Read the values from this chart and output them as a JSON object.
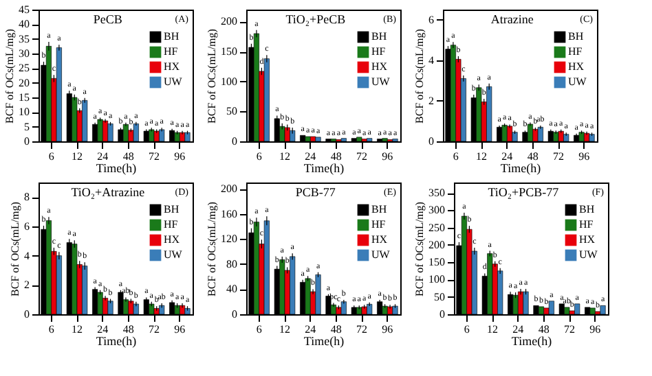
{
  "chart_data": [
    {
      "type": "bar",
      "title": "PeCB",
      "annotations": [
        "(A)"
      ],
      "xlabel": "Time(h)",
      "ylabel": "BCF of OCs(mL/mg)",
      "categories": [
        "6",
        "12",
        "24",
        "48",
        "72",
        "96"
      ],
      "ylim": [
        0,
        45
      ],
      "yticks": [
        0,
        5,
        10,
        15,
        20,
        25,
        30,
        35,
        40,
        45
      ],
      "legend": "top right",
      "grid": false,
      "series": [
        {
          "name": "BH",
          "color": "#000000",
          "values": [
            26,
            16.3,
            5.8,
            4,
            3.5,
            3.7
          ],
          "errors": [
            1.2,
            1,
            0.6,
            0.6,
            0.6,
            0.6
          ],
          "value_labels": [
            "b",
            "a",
            "a",
            "b",
            "a",
            "a"
          ]
        },
        {
          "name": "HF",
          "color": "#1a7a1a",
          "values": [
            32.5,
            15,
            7.5,
            5.8,
            4,
            3
          ],
          "errors": [
            1.5,
            1,
            0.6,
            0.6,
            0.6,
            0.6
          ],
          "value_labels": [
            "a",
            "a",
            "a",
            "a",
            "a",
            "a"
          ]
        },
        {
          "name": "HX",
          "color": "#e8000b",
          "values": [
            21.5,
            10.5,
            7,
            3.8,
            3.5,
            3
          ],
          "errors": [
            1.2,
            0.8,
            0.6,
            0.6,
            0.6,
            0.6
          ],
          "value_labels": [
            "c",
            "b",
            "a",
            "b",
            "a",
            "a"
          ]
        },
        {
          "name": "UW",
          "color": "#3a7db8",
          "values": [
            32,
            14,
            6,
            6,
            4,
            3
          ],
          "errors": [
            1,
            0.8,
            0.6,
            0.6,
            0.6,
            0.6
          ],
          "value_labels": [
            "a",
            "a",
            "a",
            "a",
            "a",
            "a"
          ]
        }
      ]
    },
    {
      "type": "bar",
      "title": "TiO₂+PeCB",
      "annotations": [
        "(B)"
      ],
      "xlabel": "Time(h)",
      "ylabel": "BCF of OCs(mL/mg)",
      "categories": [
        "6",
        "12",
        "24",
        "48",
        "72",
        "96"
      ],
      "ylim": [
        0,
        220
      ],
      "yticks": [
        0,
        50,
        100,
        150,
        200
      ],
      "legend": "top right",
      "grid": false,
      "series": [
        {
          "name": "BH",
          "color": "#000000",
          "values": [
            157,
            38,
            10,
            4,
            5,
            4
          ],
          "errors": [
            6,
            5,
            null,
            null,
            null,
            null
          ],
          "value_labels": [
            "b",
            "a",
            "a",
            "a",
            "a",
            "a"
          ]
        },
        {
          "name": "HF",
          "color": "#1a7a1a",
          "values": [
            180,
            25,
            8,
            4,
            7,
            5
          ],
          "errors": [
            6,
            5,
            null,
            null,
            null,
            null
          ],
          "value_labels": [
            "a",
            "b",
            "a",
            "a",
            "a",
            "a"
          ]
        },
        {
          "name": "HX",
          "color": "#e8000b",
          "values": [
            117,
            23,
            8,
            3,
            4,
            3
          ],
          "errors": [
            6,
            5,
            null,
            null,
            null,
            null
          ],
          "value_labels": [
            "d",
            "b",
            "a",
            "a",
            "a",
            "a"
          ]
        },
        {
          "name": "UW",
          "color": "#3a7db8",
          "values": [
            138,
            18,
            7,
            5,
            5,
            4
          ],
          "errors": [
            6,
            5,
            null,
            null,
            null,
            null
          ],
          "value_labels": [
            "c",
            "b",
            "a",
            "a",
            "a",
            "a"
          ]
        }
      ]
    },
    {
      "type": "bar",
      "title": "Atrazine",
      "annotations": [
        "(C)"
      ],
      "xlabel": "Time(h)",
      "ylabel": "BCF of OCs(mL/mg)",
      "categories": [
        "6",
        "12",
        "24",
        "48",
        "72",
        "96"
      ],
      "ylim": [
        0,
        6.5
      ],
      "yticks": [
        0,
        2,
        4,
        6
      ],
      "legend": "top right",
      "grid": false,
      "series": [
        {
          "name": "BH",
          "color": "#000000",
          "values": [
            4.55,
            2.15,
            0.7,
            0.45,
            0.5,
            0.3
          ],
          "errors": [
            0.15,
            0.15,
            0.08,
            0.08,
            0.08,
            0.08
          ],
          "value_labels": [
            "a",
            "b",
            "a",
            "b",
            "a",
            "a"
          ]
        },
        {
          "name": "HF",
          "color": "#1a7a1a",
          "values": [
            4.75,
            2.65,
            0.8,
            0.85,
            0.45,
            0.45
          ],
          "errors": [
            0.15,
            0.15,
            0.08,
            0.08,
            0.08,
            0.08
          ],
          "value_labels": [
            "a",
            "a",
            "a",
            "a",
            "a",
            "a"
          ]
        },
        {
          "name": "HX",
          "color": "#e8000b",
          "values": [
            4.05,
            1.95,
            0.75,
            0.6,
            0.5,
            0.4
          ],
          "errors": [
            0.15,
            0.15,
            0.08,
            0.08,
            0.08,
            0.08
          ],
          "value_labels": [
            "b",
            "b",
            "a",
            "b",
            "a",
            "a"
          ]
        },
        {
          "name": "UW",
          "color": "#3a7db8",
          "values": [
            3.1,
            2.7,
            0.45,
            0.7,
            0.35,
            0.35
          ],
          "errors": [
            0.15,
            0.15,
            0.08,
            0.08,
            0.08,
            0.08
          ],
          "value_labels": [
            "c",
            "a",
            "b",
            "ab",
            "a",
            "a"
          ]
        }
      ]
    },
    {
      "type": "bar",
      "title": "TiO₂+Atrazine",
      "annotations": [
        "(D)"
      ],
      "xlabel": "Time(h)",
      "ylabel": "BCF of OCs(mL/mg)",
      "categories": [
        "6",
        "12",
        "24",
        "48",
        "72",
        "96"
      ],
      "ylim": [
        0,
        9
      ],
      "yticks": [
        0,
        2,
        4,
        6,
        8
      ],
      "legend": "top right",
      "grid": false,
      "series": [
        {
          "name": "BH",
          "color": "#000000",
          "values": [
            5.8,
            4.9,
            1.7,
            1.5,
            1.0,
            0.8
          ],
          "errors": [
            0.25,
            0.25,
            0.15,
            0.15,
            0.15,
            0.15
          ],
          "value_labels": [
            "b",
            "a",
            "a",
            "a",
            "a",
            "a"
          ]
        },
        {
          "name": "HF",
          "color": "#1a7a1a",
          "values": [
            6.4,
            4.8,
            1.5,
            1.0,
            0.7,
            0.6
          ],
          "errors": [
            0.25,
            0.25,
            0.15,
            0.15,
            0.15,
            0.15
          ],
          "value_labels": [
            "a",
            "a",
            "a",
            "ab",
            "a",
            "a"
          ]
        },
        {
          "name": "HX",
          "color": "#e8000b",
          "values": [
            4.3,
            3.4,
            1.1,
            0.9,
            0.4,
            0.6
          ],
          "errors": [
            0.25,
            0.25,
            0.15,
            0.15,
            0.15,
            0.15
          ],
          "value_labels": [
            "c",
            "b",
            "b",
            "b",
            "b",
            "a"
          ]
        },
        {
          "name": "UW",
          "color": "#3a7db8",
          "values": [
            4.0,
            3.3,
            0.9,
            0.7,
            0.6,
            0.4
          ],
          "errors": [
            0.25,
            0.25,
            0.15,
            0.15,
            0.15,
            0.15
          ],
          "value_labels": [
            "c",
            "b",
            "b",
            "b",
            "ab",
            "a"
          ]
        }
      ]
    },
    {
      "type": "bar",
      "title": "PCB-77",
      "annotations": [
        "(E)"
      ],
      "xlabel": "Time(h)",
      "ylabel": "BCF of OCs(mL/mg)",
      "categories": [
        "6",
        "12",
        "24",
        "48",
        "72",
        "96"
      ],
      "ylim": [
        0,
        210
      ],
      "yticks": [
        0,
        40,
        80,
        120,
        160,
        200
      ],
      "legend": "top right",
      "grid": false,
      "series": [
        {
          "name": "BH",
          "color": "#000000",
          "values": [
            130,
            72,
            51,
            29,
            11,
            20
          ],
          "errors": [
            7,
            5,
            4,
            3,
            3,
            3
          ],
          "value_labels": [
            "b",
            "b",
            "a",
            "a",
            "a",
            "a"
          ]
        },
        {
          "name": "HF",
          "color": "#1a7a1a",
          "values": [
            147,
            87,
            57,
            15,
            11,
            13
          ],
          "errors": [
            7,
            5,
            4,
            3,
            3,
            3
          ],
          "value_labels": [
            "a",
            "a",
            "a",
            "bc",
            "a",
            "b"
          ]
        },
        {
          "name": "HX",
          "color": "#e8000b",
          "values": [
            112,
            70,
            36,
            11,
            12,
            12
          ],
          "errors": [
            7,
            5,
            4,
            3,
            3,
            3
          ],
          "value_labels": [
            "c",
            "b",
            "b",
            "c",
            "a",
            "b"
          ]
        },
        {
          "name": "UW",
          "color": "#3a7db8",
          "values": [
            149,
            92,
            63,
            20,
            16,
            13
          ],
          "errors": [
            7,
            5,
            4,
            3,
            3,
            3
          ],
          "value_labels": [
            "a",
            "a",
            "a",
            "b",
            "a",
            "b"
          ]
        }
      ]
    },
    {
      "type": "bar",
      "title": "TiO₂+PCB-77",
      "annotations": [
        "(F)"
      ],
      "xlabel": "Time(h)",
      "ylabel": "BCF of OCs(mL/mg)",
      "categories": [
        "6",
        "12",
        "24",
        "48",
        "72",
        "96"
      ],
      "ylim": [
        0,
        380
      ],
      "yticks": [
        0,
        50,
        100,
        150,
        200,
        250,
        300,
        350
      ],
      "legend": "top right",
      "grid": false,
      "series": [
        {
          "name": "BH",
          "color": "#000000",
          "values": [
            198,
            110,
            57,
            25,
            30,
            20
          ],
          "errors": [
            10,
            8,
            8,
            null,
            null,
            null
          ],
          "value_labels": [
            "c",
            "d",
            "a",
            "b",
            "a",
            "a"
          ]
        },
        {
          "name": "HF",
          "color": "#1a7a1a",
          "values": [
            283,
            175,
            55,
            22,
            20,
            18
          ],
          "errors": [
            10,
            8,
            8,
            null,
            null,
            null
          ],
          "value_labels": [
            "a",
            "a",
            "a",
            "b",
            "ab",
            "a"
          ]
        },
        {
          "name": "HX",
          "color": "#e8000b",
          "values": [
            245,
            145,
            65,
            18,
            10,
            8
          ],
          "errors": [
            10,
            8,
            8,
            null,
            null,
            null
          ],
          "value_labels": [
            "b",
            "b",
            "a",
            "b",
            "b",
            "b"
          ]
        },
        {
          "name": "UW",
          "color": "#3a7db8",
          "values": [
            182,
            125,
            65,
            38,
            30,
            25
          ],
          "errors": [
            10,
            8,
            8,
            null,
            null,
            null
          ],
          "value_labels": [
            "c",
            "c",
            "a",
            "a",
            "a",
            "a"
          ]
        }
      ]
    }
  ]
}
